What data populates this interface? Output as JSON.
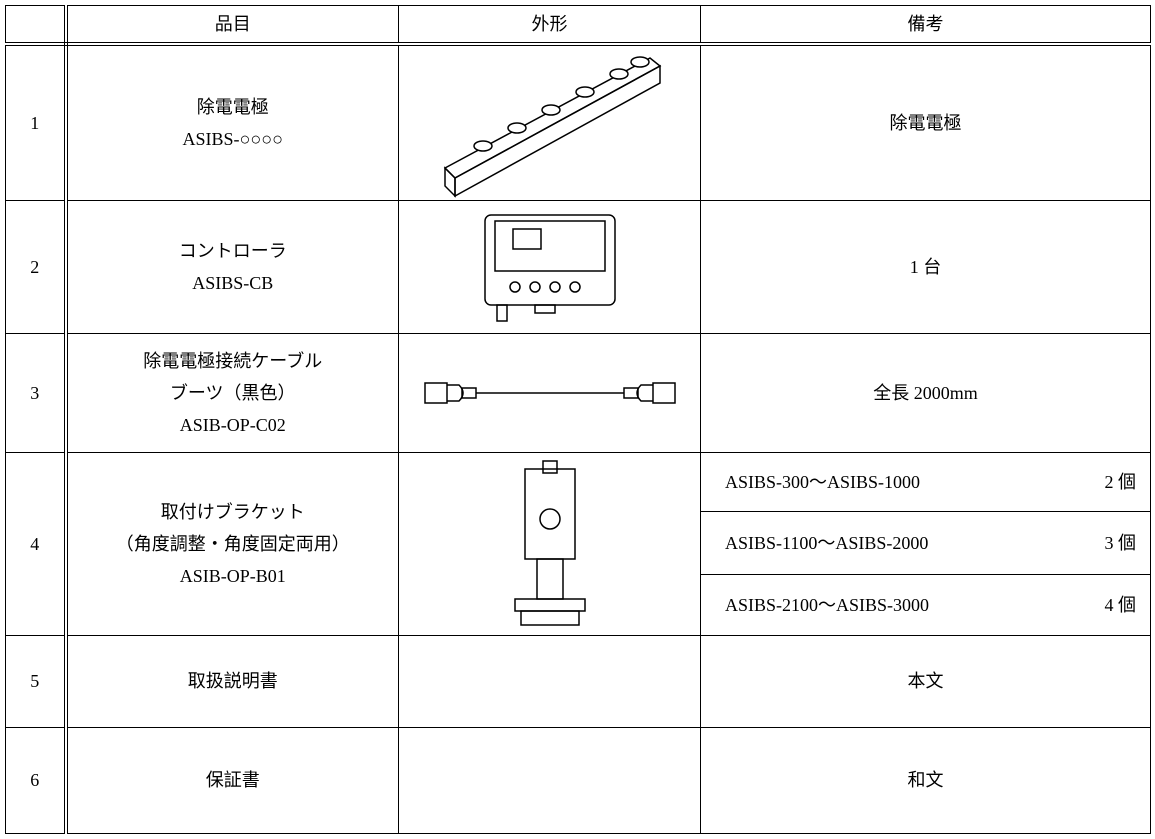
{
  "table": {
    "header": [
      "品目",
      "外形",
      "備考"
    ],
    "rows": [
      {
        "no": "1",
        "item": [
          "除電電極",
          "ASIBS-○○○○"
        ],
        "remarks": "除電電極"
      },
      {
        "no": "2",
        "item": [
          "コントローラ",
          "ASIBS-CB"
        ],
        "remarks": "1 台"
      },
      {
        "no": "3",
        "item": [
          "除電電極接続ケーブル",
          "ブーツ（黒色）",
          "ASIB-OP-C02"
        ],
        "remarks": "全長 2000mm"
      },
      {
        "no": "4",
        "item": [
          "取付けブラケット",
          "（角度調整・角度固定両用）",
          "ASIB-OP-B01"
        ],
        "remarks": [
          [
            "ASIBS-300～ASIBS-1000",
            "2 個"
          ],
          [
            "ASIBS-1100～ASIBS-2000",
            "3 個"
          ],
          [
            "ASIBS-2100～ASIBS-3000",
            "4 個"
          ]
        ]
      },
      {
        "no": "5",
        "item": [
          "取扱説明書"
        ],
        "remarks": "本文"
      },
      {
        "no": "6",
        "item": [
          "保証書"
        ],
        "remarks": "和文"
      }
    ]
  }
}
